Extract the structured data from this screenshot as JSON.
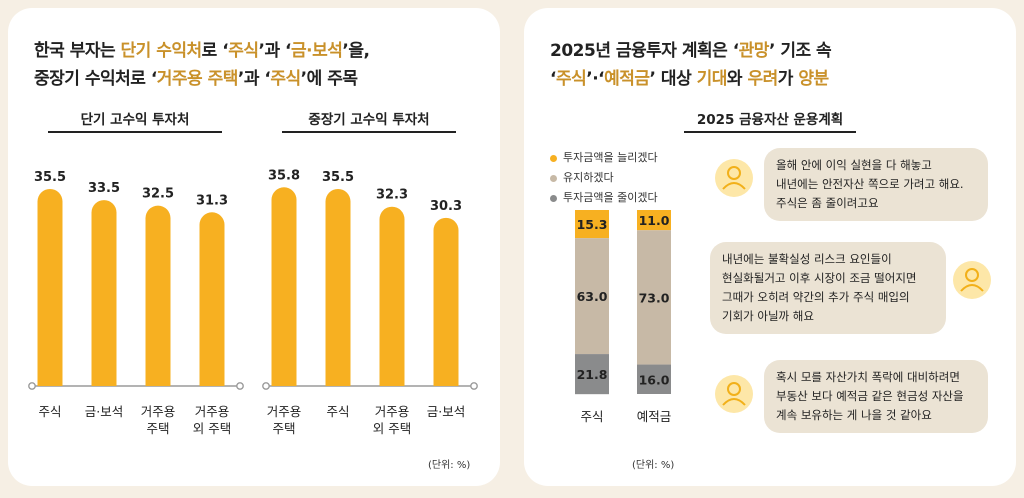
{
  "colors": {
    "orange": "#f7b021",
    "gold": "#c9912a",
    "beige": "#c7b9a6",
    "gray": "#8a8b8c",
    "bubble": "#ebe3d4",
    "axis": "#9a9a9a"
  },
  "left": {
    "title_line1": {
      "a": "한국 부자는 ",
      "b": "단기 수익처",
      "c": "로 ‘",
      "d": "주식",
      "e": "’과 ‘",
      "f": "금·보석",
      "g": "’을,"
    },
    "title_line2": {
      "a": "중장기 수익처로 ‘",
      "b": "거주용 주택",
      "c": "’과 ‘",
      "d": "주식",
      "e": "’에 주목"
    },
    "unit": "(단위: %)"
  },
  "right": {
    "title_line1": {
      "a": "2025년 금융투자 계획은 ‘",
      "b": "관망",
      "c": "’ 기조 속"
    },
    "title_line2": {
      "a": "‘",
      "b": "주식",
      "c": "’·‘",
      "d": "예적금",
      "e": "’ 대상 ",
      "f": "기대",
      "g": "와 ",
      "h": "우려",
      "i": "가 ",
      "j": "양분"
    },
    "unit": "(단위: %)",
    "bubbles": [
      "올해 안에 이익 실현을 다 해놓고 내년에는 안전자산 쪽으로 가려고 해요. 주식은 좀 줄이려고요",
      "내년에는 불확실성 리스크 요인들이 현실화될거고 이후 시장이 조금 떨어지면 그때가 오히려 약간의 추가 주식 매입의 기회가 아닐까 해요",
      "혹시 모를 자산가치 폭락에 대비하려면 부동산 보다 예적금 같은 현금성 자산을 계속 보유하는 게 나을 것 같아요"
    ],
    "avatar_icon": "person-avatar-icon"
  },
  "chart_data": [
    {
      "type": "bar",
      "title": "단기 고수익 투자처",
      "categories": [
        "주식",
        "금·보석",
        "거주용\n주택",
        "거주용\n외 주택"
      ],
      "values": [
        35.5,
        33.5,
        32.5,
        31.3
      ],
      "unit": "(단위: %)"
    },
    {
      "type": "bar",
      "title": "중장기 고수익 투자처",
      "categories": [
        "거주용\n주택",
        "주식",
        "거주용\n외 주택",
        "금·보석"
      ],
      "values": [
        35.8,
        35.5,
        32.3,
        30.3
      ],
      "unit": "(단위: %)"
    },
    {
      "type": "bar",
      "stacked": true,
      "title": "2025 금융자산 운용계획",
      "categories": [
        "주식",
        "예적금"
      ],
      "series": [
        {
          "name": "투자금액을 늘리겠다",
          "values": [
            15.3,
            11.0
          ],
          "color": "#f7b021"
        },
        {
          "name": "유지하겠다",
          "values": [
            63.0,
            73.0
          ],
          "color": "#c7b9a6"
        },
        {
          "name": "투자금액을 줄이겠다",
          "values": [
            21.8,
            16.0
          ],
          "color": "#8a8b8c"
        }
      ],
      "unit": "(단위: %)"
    }
  ]
}
